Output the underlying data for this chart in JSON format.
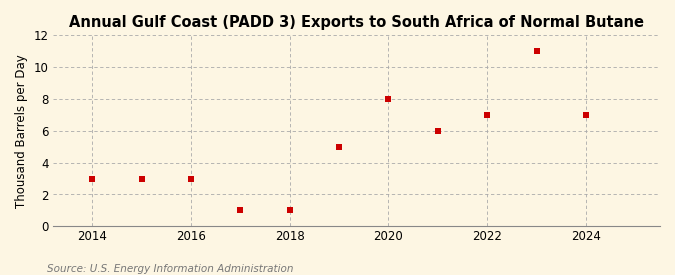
{
  "title": "Annual Gulf Coast (PADD 3) Exports to South Africa of Normal Butane",
  "ylabel": "Thousand Barrels per Day",
  "source": "Source: U.S. Energy Information Administration",
  "years": [
    2014,
    2015,
    2016,
    2017,
    2018,
    2019,
    2020,
    2021,
    2022,
    2023,
    2024
  ],
  "values": [
    3.0,
    3.0,
    3.0,
    1.0,
    1.0,
    5.0,
    8.0,
    6.0,
    7.0,
    11.0,
    7.0
  ],
  "marker_color": "#cc0000",
  "marker_size": 5,
  "background_color": "#fdf6e3",
  "grid_color": "#aaaaaa",
  "ylim": [
    0,
    12
  ],
  "yticks": [
    0,
    2,
    4,
    6,
    8,
    10,
    12
  ],
  "xticks": [
    2014,
    2016,
    2018,
    2020,
    2022,
    2024
  ],
  "xlim": [
    2013.2,
    2025.5
  ],
  "title_fontsize": 10.5,
  "label_fontsize": 8.5,
  "tick_fontsize": 8.5,
  "source_fontsize": 7.5
}
